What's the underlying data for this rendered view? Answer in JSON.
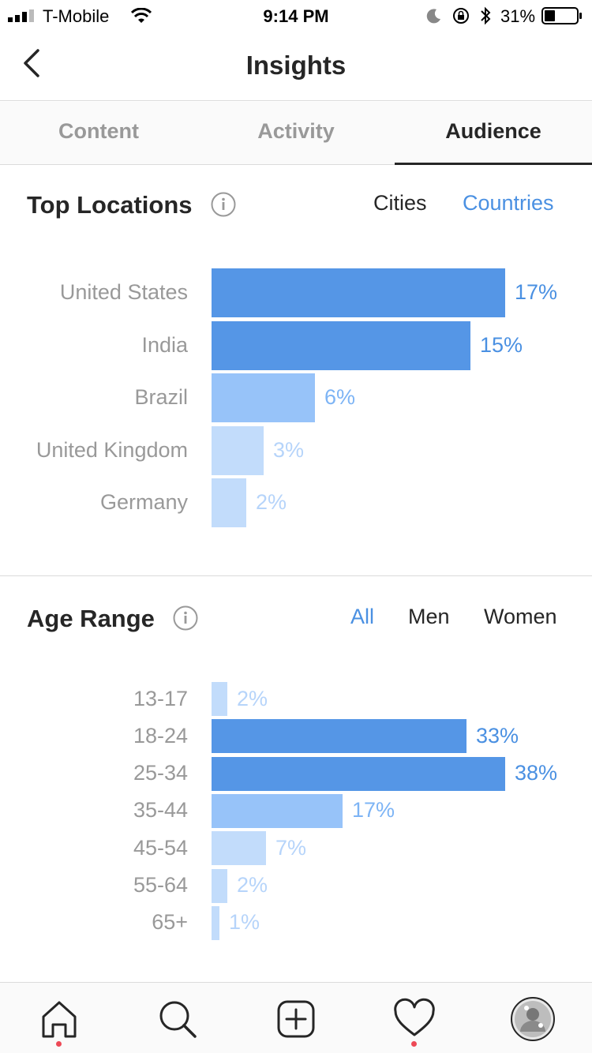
{
  "status_bar": {
    "carrier": "T-Mobile",
    "time": "9:14 PM",
    "battery": "31%",
    "icons": [
      "signal-icon",
      "wifi-icon",
      "moon-icon",
      "rotation-lock-icon",
      "bluetooth-icon",
      "battery-icon"
    ]
  },
  "header": {
    "title": "Insights",
    "back_icon": "chevron-left-icon"
  },
  "tabs": [
    {
      "label": "Content",
      "active": false
    },
    {
      "label": "Activity",
      "active": false
    },
    {
      "label": "Audience",
      "active": true
    }
  ],
  "top_locations": {
    "title": "Top Locations",
    "filters": [
      {
        "label": "Cities",
        "active": false
      },
      {
        "label": "Countries",
        "active": true
      }
    ],
    "items": [
      {
        "label": "United States",
        "value": 17,
        "display": "17%"
      },
      {
        "label": "India",
        "value": 15,
        "display": "15%"
      },
      {
        "label": "Brazil",
        "value": 6,
        "display": "6%"
      },
      {
        "label": "United Kingdom",
        "value": 3,
        "display": "3%"
      },
      {
        "label": "Germany",
        "value": 2,
        "display": "2%"
      }
    ]
  },
  "age_range": {
    "title": "Age Range",
    "filters": [
      {
        "label": "All",
        "active": true
      },
      {
        "label": "Men",
        "active": false
      },
      {
        "label": "Women",
        "active": false
      }
    ],
    "items": [
      {
        "label": "13-17",
        "value": 2,
        "display": "2%"
      },
      {
        "label": "18-24",
        "value": 33,
        "display": "33%"
      },
      {
        "label": "25-34",
        "value": 38,
        "display": "38%"
      },
      {
        "label": "35-44",
        "value": 17,
        "display": "17%"
      },
      {
        "label": "45-54",
        "value": 7,
        "display": "7%"
      },
      {
        "label": "55-64",
        "value": 2,
        "display": "2%"
      },
      {
        "label": "65+",
        "value": 1,
        "display": "1%"
      }
    ]
  },
  "colors": {
    "strong": "#5596e6",
    "medium": "#97c3f9",
    "light": "#c2dcfb",
    "value_strong": "#4a90e2",
    "value_medium": "#7db4f5",
    "value_light": "#b6d4fa",
    "notification_dot": "#ed4956"
  },
  "bottom_tabs": [
    {
      "icon": "home-icon",
      "notification": true
    },
    {
      "icon": "search-icon",
      "notification": false
    },
    {
      "icon": "new-post-icon",
      "notification": false
    },
    {
      "icon": "activity-heart-icon",
      "notification": true
    },
    {
      "icon": "profile-avatar-icon",
      "notification": false
    }
  ]
}
